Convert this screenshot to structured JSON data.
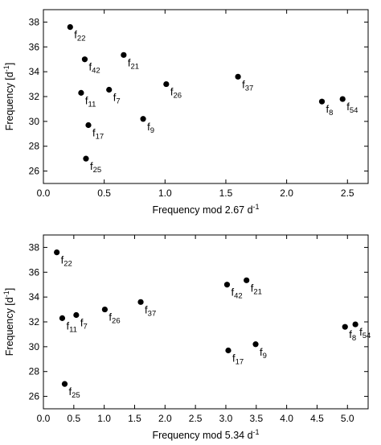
{
  "chart_data": [
    {
      "type": "scatter",
      "xlabel": "Frequency mod 2.67 d",
      "xlabel_sup": "-1",
      "ylabel": "Frequency [d",
      "ylabel_sup": "-1",
      "ylabel_end": "]",
      "xlim": [
        0.0,
        2.67
      ],
      "ylim": [
        25.0,
        39.0
      ],
      "xticks": [
        "0.0",
        "0.5",
        "1.0",
        "1.5",
        "2.0",
        "2.5"
      ],
      "xtick_values": [
        0.0,
        0.5,
        1.0,
        1.5,
        2.0,
        2.5
      ],
      "yticks": [
        "26",
        "28",
        "30",
        "32",
        "34",
        "36",
        "38"
      ],
      "ytick_values": [
        26,
        28,
        30,
        32,
        34,
        36,
        38
      ],
      "points": [
        {
          "x": 0.22,
          "y": 37.6,
          "base": "f",
          "sub": "22"
        },
        {
          "x": 0.34,
          "y": 35.0,
          "base": "f",
          "sub": "42"
        },
        {
          "x": 0.66,
          "y": 35.35,
          "base": "f",
          "sub": "21"
        },
        {
          "x": 1.01,
          "y": 33.0,
          "base": "f",
          "sub": "26"
        },
        {
          "x": 1.6,
          "y": 33.6,
          "base": "f",
          "sub": "37"
        },
        {
          "x": 0.31,
          "y": 32.3,
          "base": "f",
          "sub": "11"
        },
        {
          "x": 0.54,
          "y": 32.55,
          "base": "f",
          "sub": "7"
        },
        {
          "x": 2.29,
          "y": 31.6,
          "base": "f",
          "sub": "8"
        },
        {
          "x": 2.46,
          "y": 31.8,
          "base": "f",
          "sub": "54"
        },
        {
          "x": 0.82,
          "y": 30.2,
          "base": "f",
          "sub": "9"
        },
        {
          "x": 0.37,
          "y": 29.7,
          "base": "f",
          "sub": "17"
        },
        {
          "x": 0.35,
          "y": 27.0,
          "base": "f",
          "sub": "25"
        }
      ]
    },
    {
      "type": "scatter",
      "xlabel": "Frequency mod 5.34 d",
      "xlabel_sup": "-1",
      "ylabel": "Frequency [d",
      "ylabel_sup": "-1",
      "ylabel_end": "]",
      "xlim": [
        0.0,
        5.34
      ],
      "ylim": [
        25.0,
        39.0
      ],
      "xticks": [
        "0.0",
        "0.5",
        "1.0",
        "1.5",
        "2.0",
        "2.5",
        "3.0",
        "3.5",
        "4.0",
        "4.5",
        "5.0"
      ],
      "xtick_values": [
        0.0,
        0.5,
        1.0,
        1.5,
        2.0,
        2.5,
        3.0,
        3.5,
        4.0,
        4.5,
        5.0
      ],
      "yticks": [
        "26",
        "28",
        "30",
        "32",
        "34",
        "36",
        "38"
      ],
      "ytick_values": [
        26,
        28,
        30,
        32,
        34,
        36,
        38
      ],
      "points": [
        {
          "x": 0.22,
          "y": 37.6,
          "base": "f",
          "sub": "22"
        },
        {
          "x": 3.02,
          "y": 35.0,
          "base": "f",
          "sub": "42"
        },
        {
          "x": 3.34,
          "y": 35.35,
          "base": "f",
          "sub": "21"
        },
        {
          "x": 1.01,
          "y": 33.0,
          "base": "f",
          "sub": "26"
        },
        {
          "x": 1.6,
          "y": 33.6,
          "base": "f",
          "sub": "37"
        },
        {
          "x": 0.31,
          "y": 32.3,
          "base": "f",
          "sub": "11"
        },
        {
          "x": 0.54,
          "y": 32.55,
          "base": "f",
          "sub": "7"
        },
        {
          "x": 4.96,
          "y": 31.6,
          "base": "f",
          "sub": "8"
        },
        {
          "x": 5.13,
          "y": 31.8,
          "base": "f",
          "sub": "54"
        },
        {
          "x": 3.49,
          "y": 30.2,
          "base": "f",
          "sub": "9"
        },
        {
          "x": 3.04,
          "y": 29.7,
          "base": "f",
          "sub": "17"
        },
        {
          "x": 0.35,
          "y": 27.0,
          "base": "f",
          "sub": "25"
        }
      ]
    }
  ]
}
